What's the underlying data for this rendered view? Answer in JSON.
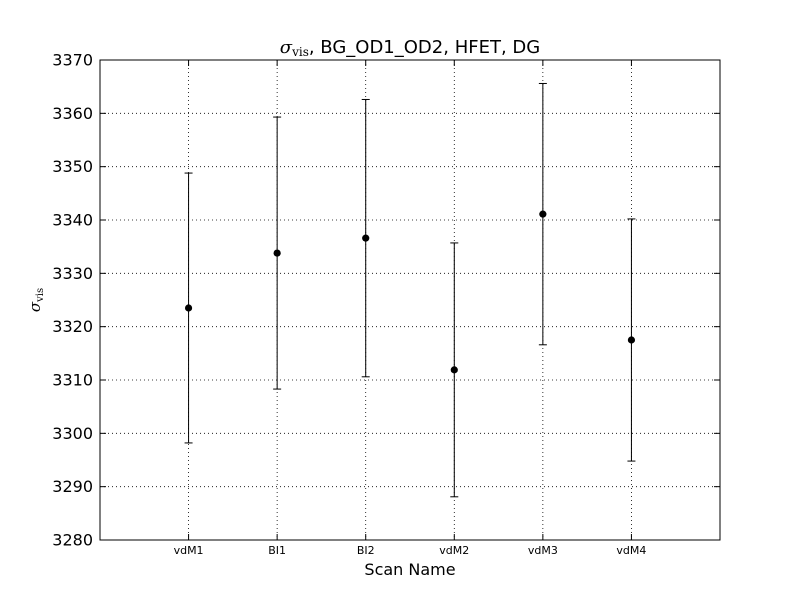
{
  "chart_data": {
    "type": "scatter",
    "title": {
      "symbol": "σ",
      "subscript": "vis",
      "rest": ", BG_OD1_OD2, HFET, DG"
    },
    "xlabel": "Scan Name",
    "ylabel": {
      "symbol": "σ",
      "subscript": "vis"
    },
    "categories": [
      "vdM1",
      "BI1",
      "BI2",
      "vdM2",
      "vdM3",
      "vdM4"
    ],
    "series": [
      {
        "values": [
          3323.5,
          3333.8,
          3336.6,
          3311.9,
          3341.1,
          3317.5
        ],
        "errors": [
          25.3,
          25.5,
          26.0,
          23.8,
          24.5,
          22.7
        ]
      }
    ],
    "ylim": [
      3280,
      3370
    ],
    "yticks": [
      3280,
      3290,
      3300,
      3310,
      3320,
      3330,
      3340,
      3350,
      3360,
      3370
    ],
    "grid": true,
    "marker_color": "#000000"
  }
}
